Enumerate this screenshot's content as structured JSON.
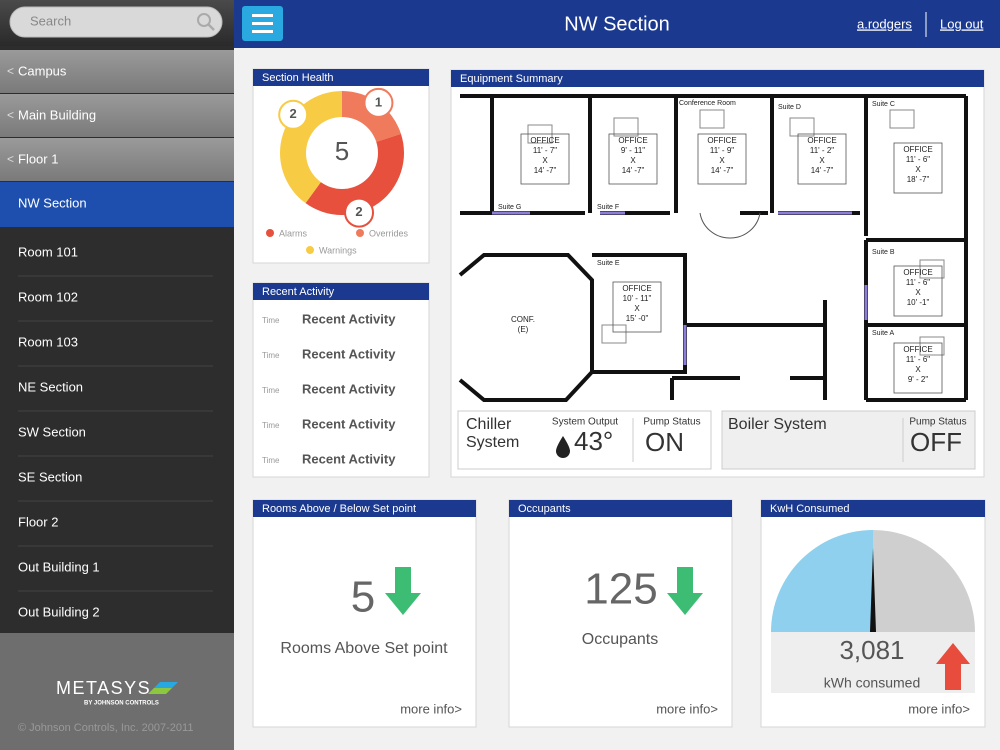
{
  "sidebar": {
    "search_placeholder": "Search",
    "back_marker": "<",
    "breadcrumbs": [
      "Campus",
      "Main Building",
      "Floor 1"
    ],
    "selected": "NW Section",
    "items": [
      "Room 101",
      "Room 102",
      "Room 103",
      "NE Section",
      "SW Section",
      "SE Section",
      "Floor 2",
      "Out Building 1",
      "Out Building 2"
    ],
    "logo": "METASYS",
    "logo_sub": "BY JOHNSON CONTROLS",
    "copyright": "© Johnson Controls, Inc. 2007-2011"
  },
  "header": {
    "title": "NW Section",
    "user": "a.rodgers",
    "logout": "Log out"
  },
  "section_health": {
    "title": "Section Health",
    "total": 5,
    "segments": [
      {
        "name": "Overrides",
        "count": 1,
        "color": "#f07a5c"
      },
      {
        "name": "Alarms",
        "count": 2,
        "color": "#e6503c"
      },
      {
        "name": "Warnings",
        "count": 2,
        "color": "#f8cb45"
      }
    ]
  },
  "recent_activity": {
    "title": "Recent Activity",
    "rows": [
      {
        "time": "Time",
        "text": "Recent Activity"
      },
      {
        "time": "Time",
        "text": "Recent Activity"
      },
      {
        "time": "Time",
        "text": "Recent Activity"
      },
      {
        "time": "Time",
        "text": "Recent Activity"
      },
      {
        "time": "Time",
        "text": "Recent Activity"
      }
    ]
  },
  "equipment_summary": {
    "title": "Equipment Summary",
    "floorplan": {
      "offices": [
        {
          "suite": "Suite G",
          "label": "OFFICE",
          "width": "11' - 7\"",
          "cross": "X",
          "depth": "14' -7\""
        },
        {
          "suite": "Suite F",
          "label": "OFFICE",
          "width": "9' - 11\"",
          "cross": "X",
          "depth": "14' -7\""
        },
        {
          "suite": "Conference Room",
          "label": "OFFICE",
          "width": "11' - 9\"",
          "cross": "X",
          "depth": "14' -7\""
        },
        {
          "suite": "Suite D",
          "label": "OFFICE",
          "width": "11' - 2\"",
          "cross": "X",
          "depth": "14' -7\""
        },
        {
          "suite": "Suite C",
          "label": "OFFICE",
          "width": "11' - 6\"",
          "cross": "X",
          "depth": "18' -7\""
        },
        {
          "suite": "Suite B",
          "label": "OFFICE",
          "width": "11' - 6\"",
          "cross": "X",
          "depth": "10' -1\""
        },
        {
          "suite": "Suite A",
          "label": "OFFICE",
          "width": "11' - 6\"",
          "cross": "X",
          "depth": "9' - 2\""
        },
        {
          "suite": "Suite E",
          "label": "OFFICE",
          "width": "10' - 11\"",
          "cross": "X",
          "depth": "15' -0\""
        }
      ],
      "conference": {
        "label": "CONF.",
        "sub": "(E)"
      }
    },
    "chiller": {
      "name": "Chiller",
      "name2": "System",
      "output_label": "System Output",
      "output": "43°",
      "pump_label": "Pump Status",
      "pump": "ON"
    },
    "boiler": {
      "name": "Boiler System",
      "pump_label": "Pump Status",
      "pump": "OFF"
    }
  },
  "rooms_setpoint": {
    "title": "Rooms Above / Below Set point",
    "value": "5",
    "label": "Rooms Above Set point",
    "link": "more info>"
  },
  "occupants": {
    "title": "Occupants",
    "value": "125",
    "label": "Occupants",
    "link": "more info>"
  },
  "kwh": {
    "title": "KwH Consumed",
    "value": "3,081",
    "label": "kWh consumed",
    "link": "more info>"
  }
}
